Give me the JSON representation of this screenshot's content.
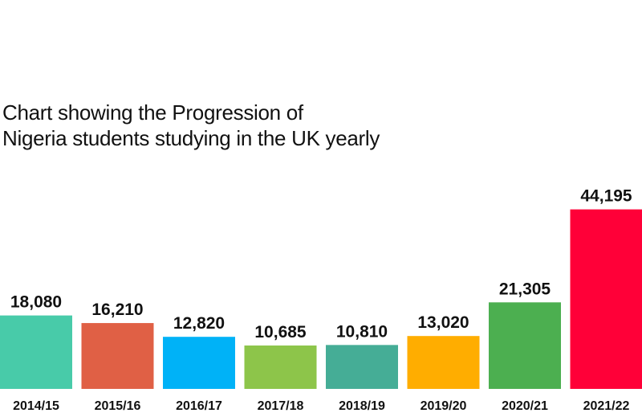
{
  "title_lines": [
    "Chart showing the Progression of",
    "Nigeria students studying in the UK yearly"
  ],
  "chart_data": {
    "type": "bar",
    "title": "Chart showing the Progression of Nigeria students studying in the UK yearly",
    "categories": [
      "2014/15",
      "2015/16",
      "2016/17",
      "2017/18",
      "2018/19",
      "2019/20",
      "2020/21",
      "2021/22"
    ],
    "values": [
      18080,
      16210,
      12820,
      10685,
      10810,
      13020,
      21305,
      44195
    ],
    "value_labels": [
      "18,080",
      "16,210",
      "12,820",
      "10,685",
      "10,810",
      "13,020",
      "21,305",
      "44,195"
    ],
    "colors": [
      "#48cba9",
      "#e06045",
      "#00b2f7",
      "#8dc54a",
      "#45ad96",
      "#ffad00",
      "#4caf50",
      "#ff0038"
    ],
    "xlabel": "",
    "ylabel": "",
    "grid": false,
    "legend": "none"
  }
}
